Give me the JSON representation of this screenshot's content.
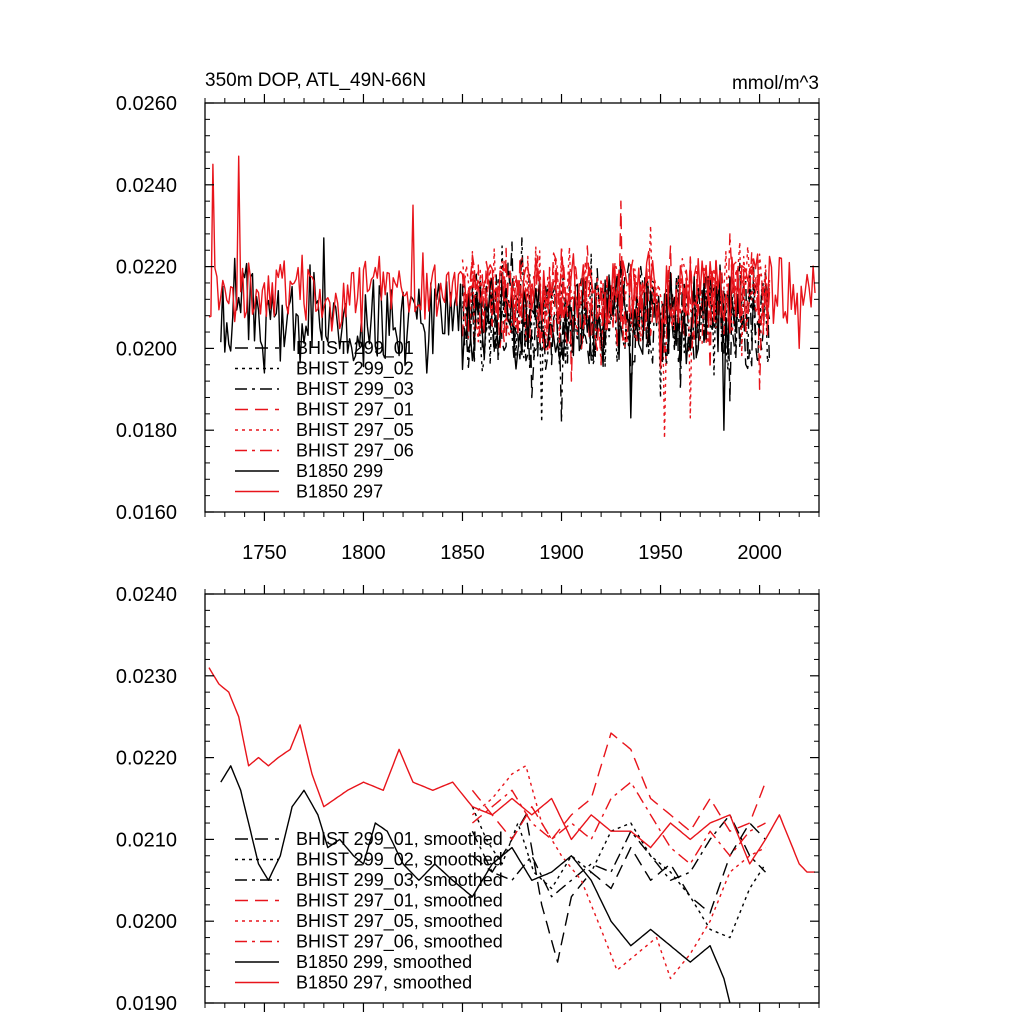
{
  "chart_data": [
    {
      "type": "line",
      "title": "350m DOP, ATL_49N-66N",
      "units": "mmol/m^3",
      "xlim": [
        1720,
        2030
      ],
      "ylim": [
        0.016,
        0.026
      ],
      "xticks": [
        1750,
        1800,
        1850,
        1900,
        1950,
        2000
      ],
      "xtick_labels": [
        "1750",
        "1800",
        "1850",
        "1900",
        "1950",
        "2000"
      ],
      "yticks": [
        0.016,
        0.018,
        0.02,
        0.022,
        0.024,
        0.026
      ],
      "ytick_labels": [
        "0.0160",
        "0.0180",
        "0.0200",
        "0.0220",
        "0.0240",
        "0.0260"
      ],
      "series": [
        {
          "name": "BHIST 299_01",
          "color": "#000000",
          "dash": "dash",
          "start": 1850,
          "end": 2005,
          "mean": 0.0207,
          "amp": 0.0011,
          "lows": [
            [
              1885,
              0.0188
            ],
            [
              1935,
              0.019
            ],
            [
              1985,
              0.0187
            ]
          ],
          "highs": [
            [
              1875,
              0.0226
            ],
            [
              1930,
              0.0222
            ]
          ]
        },
        {
          "name": "BHIST 299_02",
          "color": "#000000",
          "dash": "dot",
          "start": 1850,
          "end": 2005,
          "mean": 0.0207,
          "amp": 0.0011,
          "lows": [
            [
              1890,
              0.0182
            ],
            [
              1950,
              0.0188
            ]
          ],
          "highs": [
            [
              1870,
              0.0225
            ],
            [
              1915,
              0.0223
            ]
          ]
        },
        {
          "name": "BHIST 299_03",
          "color": "#000000",
          "dash": "dashdot",
          "start": 1850,
          "end": 2005,
          "mean": 0.0207,
          "amp": 0.001,
          "lows": [
            [
              1900,
              0.0182
            ],
            [
              1960,
              0.019
            ]
          ],
          "highs": [
            [
              1880,
              0.0227
            ],
            [
              1940,
              0.022
            ]
          ]
        },
        {
          "name": "BHIST 297_01",
          "color": "#e8141b",
          "dash": "dash",
          "start": 1850,
          "end": 2005,
          "mean": 0.0212,
          "amp": 0.0011,
          "lows": [
            [
              1905,
              0.0192
            ],
            [
              1975,
              0.0195
            ]
          ],
          "highs": [
            [
              1930,
              0.0236
            ],
            [
              1955,
              0.0225
            ]
          ]
        },
        {
          "name": "BHIST 297_05",
          "color": "#e8141b",
          "dash": "dot",
          "start": 1850,
          "end": 2005,
          "mean": 0.0212,
          "amp": 0.0011,
          "lows": [
            [
              1952,
              0.0178
            ],
            [
              1965,
              0.0183
            ]
          ],
          "highs": [
            [
              1945,
              0.023
            ],
            [
              1990,
              0.0226
            ]
          ]
        },
        {
          "name": "BHIST 297_06",
          "color": "#e8141b",
          "dash": "dashdot",
          "start": 1850,
          "end": 2005,
          "mean": 0.0211,
          "amp": 0.001,
          "lows": [
            [
              2000,
              0.019
            ],
            [
              1920,
              0.0196
            ]
          ],
          "highs": [
            [
              1900,
              0.0225
            ],
            [
              1985,
              0.0228
            ]
          ]
        },
        {
          "name": "B1850 299",
          "color": "#000000",
          "dash": "solid",
          "start": 1728,
          "end": 1990,
          "mean": 0.0207,
          "amp": 0.0011,
          "lows": [
            [
              1750,
              0.0194
            ],
            [
              1935,
              0.0183
            ],
            [
              1982,
              0.018
            ]
          ],
          "highs": [
            [
              1735,
              0.0222
            ],
            [
              1780,
              0.0227
            ]
          ]
        },
        {
          "name": "B1850 297",
          "color": "#e8141b",
          "dash": "solid",
          "start": 1722,
          "end": 2028,
          "mean": 0.0214,
          "amp": 0.0008,
          "lows": [
            [
              2020,
              0.02
            ],
            [
              1950,
              0.0195
            ]
          ],
          "highs": [
            [
              1724,
              0.0245
            ],
            [
              1737,
              0.0247
            ],
            [
              1825,
              0.0235
            ]
          ]
        }
      ]
    },
    {
      "type": "line",
      "title": "",
      "units": "",
      "xlim": [
        1720,
        2030
      ],
      "ylim": [
        0.019,
        0.024
      ],
      "xticks": [
        1750,
        1800,
        1850,
        1900,
        1950,
        2000
      ],
      "xtick_labels": [],
      "yticks": [
        0.019,
        0.02,
        0.021,
        0.022,
        0.023,
        0.024
      ],
      "ytick_labels": [
        "0.0190",
        "0.0200",
        "0.0210",
        "0.0220",
        "0.0230",
        "0.0240"
      ],
      "series": [
        {
          "name": "BHIST 299_01, smoothed",
          "color": "#000000",
          "dash": "dash",
          "points": [
            [
              1855,
              0.0208
            ],
            [
              1865,
              0.0206
            ],
            [
              1875,
              0.021
            ],
            [
              1882,
              0.0213
            ],
            [
              1890,
              0.0202
            ],
            [
              1898,
              0.0195
            ],
            [
              1905,
              0.0203
            ],
            [
              1915,
              0.0206
            ],
            [
              1925,
              0.0204
            ],
            [
              1935,
              0.0209
            ],
            [
              1945,
              0.0205
            ],
            [
              1955,
              0.0207
            ],
            [
              1965,
              0.0203
            ],
            [
              1975,
              0.0201
            ],
            [
              1985,
              0.0208
            ],
            [
              1995,
              0.0212
            ],
            [
              2003,
              0.021
            ]
          ]
        },
        {
          "name": "BHIST 299_02, smoothed",
          "color": "#000000",
          "dash": "dot",
          "points": [
            [
              1855,
              0.0214
            ],
            [
              1862,
              0.021
            ],
            [
              1870,
              0.0207
            ],
            [
              1878,
              0.0212
            ],
            [
              1886,
              0.0206
            ],
            [
              1895,
              0.0204
            ],
            [
              1905,
              0.0208
            ],
            [
              1915,
              0.0206
            ],
            [
              1925,
              0.0211
            ],
            [
              1935,
              0.0212
            ],
            [
              1945,
              0.0208
            ],
            [
              1955,
              0.0206
            ],
            [
              1965,
              0.0203
            ],
            [
              1975,
              0.0199
            ],
            [
              1985,
              0.0198
            ],
            [
              1995,
              0.0204
            ],
            [
              2003,
              0.0207
            ]
          ]
        },
        {
          "name": "BHIST 299_03, smoothed",
          "color": "#000000",
          "dash": "dashdot",
          "points": [
            [
              1855,
              0.0211
            ],
            [
              1865,
              0.0206
            ],
            [
              1875,
              0.0205
            ],
            [
              1885,
              0.0208
            ],
            [
              1895,
              0.0203
            ],
            [
              1905,
              0.0205
            ],
            [
              1915,
              0.0207
            ],
            [
              1925,
              0.0206
            ],
            [
              1935,
              0.0211
            ],
            [
              1945,
              0.0208
            ],
            [
              1955,
              0.0205
            ],
            [
              1965,
              0.0206
            ],
            [
              1975,
              0.021
            ],
            [
              1985,
              0.0213
            ],
            [
              1995,
              0.0208
            ],
            [
              2003,
              0.0206
            ]
          ]
        },
        {
          "name": "BHIST 297_01, smoothed",
          "color": "#e8141b",
          "dash": "dash",
          "points": [
            [
              1855,
              0.0216
            ],
            [
              1865,
              0.0213
            ],
            [
              1875,
              0.021
            ],
            [
              1885,
              0.0214
            ],
            [
              1895,
              0.021
            ],
            [
              1905,
              0.0213
            ],
            [
              1915,
              0.0215
            ],
            [
              1925,
              0.0223
            ],
            [
              1935,
              0.0221
            ],
            [
              1945,
              0.0215
            ],
            [
              1955,
              0.0213
            ],
            [
              1965,
              0.0211
            ],
            [
              1975,
              0.0215
            ],
            [
              1985,
              0.0211
            ],
            [
              1995,
              0.0212
            ],
            [
              2003,
              0.0217
            ]
          ]
        },
        {
          "name": "BHIST 297_05, smoothed",
          "color": "#e8141b",
          "dash": "dot",
          "points": [
            [
              1855,
              0.0213
            ],
            [
              1865,
              0.0215
            ],
            [
              1875,
              0.0218
            ],
            [
              1882,
              0.0219
            ],
            [
              1890,
              0.0212
            ],
            [
              1900,
              0.0208
            ],
            [
              1910,
              0.0205
            ],
            [
              1920,
              0.0199
            ],
            [
              1928,
              0.0194
            ],
            [
              1938,
              0.0196
            ],
            [
              1948,
              0.0198
            ],
            [
              1955,
              0.0193
            ],
            [
              1965,
              0.0196
            ],
            [
              1975,
              0.02
            ],
            [
              1985,
              0.0206
            ],
            [
              1995,
              0.0208
            ],
            [
              2003,
              0.0209
            ]
          ]
        },
        {
          "name": "BHIST 297_06, smoothed",
          "color": "#e8141b",
          "dash": "dashdot",
          "points": [
            [
              1855,
              0.0212
            ],
            [
              1865,
              0.0214
            ],
            [
              1875,
              0.0216
            ],
            [
              1885,
              0.0212
            ],
            [
              1895,
              0.021
            ],
            [
              1905,
              0.0212
            ],
            [
              1915,
              0.021
            ],
            [
              1925,
              0.0215
            ],
            [
              1935,
              0.0217
            ],
            [
              1945,
              0.0213
            ],
            [
              1955,
              0.0209
            ],
            [
              1965,
              0.0207
            ],
            [
              1975,
              0.0211
            ],
            [
              1985,
              0.0208
            ],
            [
              1995,
              0.0211
            ],
            [
              2003,
              0.0212
            ]
          ]
        },
        {
          "name": "B1850 299, smoothed",
          "color": "#000000",
          "dash": "solid",
          "points": [
            [
              1728,
              0.0217
            ],
            [
              1733,
              0.0219
            ],
            [
              1738,
              0.0216
            ],
            [
              1742,
              0.0212
            ],
            [
              1747,
              0.0207
            ],
            [
              1752,
              0.0205
            ],
            [
              1758,
              0.0208
            ],
            [
              1764,
              0.0214
            ],
            [
              1770,
              0.0216
            ],
            [
              1777,
              0.0213
            ],
            [
              1782,
              0.0209
            ],
            [
              1788,
              0.021
            ],
            [
              1795,
              0.0208
            ],
            [
              1800,
              0.0207
            ],
            [
              1806,
              0.0212
            ],
            [
              1812,
              0.0211
            ],
            [
              1820,
              0.0207
            ],
            [
              1828,
              0.0205
            ],
            [
              1836,
              0.0207
            ],
            [
              1845,
              0.0205
            ],
            [
              1855,
              0.0203
            ],
            [
              1865,
              0.0207
            ],
            [
              1875,
              0.0209
            ],
            [
              1885,
              0.0205
            ],
            [
              1895,
              0.0206
            ],
            [
              1905,
              0.0208
            ],
            [
              1915,
              0.0205
            ],
            [
              1925,
              0.02
            ],
            [
              1935,
              0.0197
            ],
            [
              1945,
              0.0199
            ],
            [
              1955,
              0.0197
            ],
            [
              1965,
              0.0195
            ],
            [
              1975,
              0.0197
            ],
            [
              1982,
              0.0193
            ],
            [
              1985,
              0.019
            ]
          ]
        },
        {
          "name": "B1850 297, smoothed",
          "color": "#e8141b",
          "dash": "solid",
          "points": [
            [
              1722,
              0.0231
            ],
            [
              1727,
              0.0229
            ],
            [
              1732,
              0.0228
            ],
            [
              1737,
              0.0225
            ],
            [
              1742,
              0.0219
            ],
            [
              1747,
              0.022
            ],
            [
              1752,
              0.0219
            ],
            [
              1757,
              0.022
            ],
            [
              1763,
              0.0221
            ],
            [
              1768,
              0.0224
            ],
            [
              1774,
              0.0218
            ],
            [
              1780,
              0.0214
            ],
            [
              1786,
              0.0215
            ],
            [
              1792,
              0.0216
            ],
            [
              1800,
              0.0217
            ],
            [
              1810,
              0.0216
            ],
            [
              1818,
              0.0221
            ],
            [
              1825,
              0.0217
            ],
            [
              1835,
              0.0216
            ],
            [
              1845,
              0.0217
            ],
            [
              1855,
              0.0214
            ],
            [
              1865,
              0.0213
            ],
            [
              1875,
              0.0215
            ],
            [
              1885,
              0.0213
            ],
            [
              1895,
              0.0215
            ],
            [
              1905,
              0.021
            ],
            [
              1915,
              0.0213
            ],
            [
              1925,
              0.0211
            ],
            [
              1935,
              0.0211
            ],
            [
              1945,
              0.0209
            ],
            [
              1955,
              0.0212
            ],
            [
              1965,
              0.021
            ],
            [
              1975,
              0.0212
            ],
            [
              1985,
              0.0213
            ],
            [
              1995,
              0.0207
            ],
            [
              2003,
              0.021
            ],
            [
              2010,
              0.0213
            ],
            [
              2015,
              0.021
            ],
            [
              2020,
              0.0207
            ],
            [
              2024,
              0.0206
            ],
            [
              2028,
              0.0206
            ]
          ]
        }
      ]
    }
  ]
}
